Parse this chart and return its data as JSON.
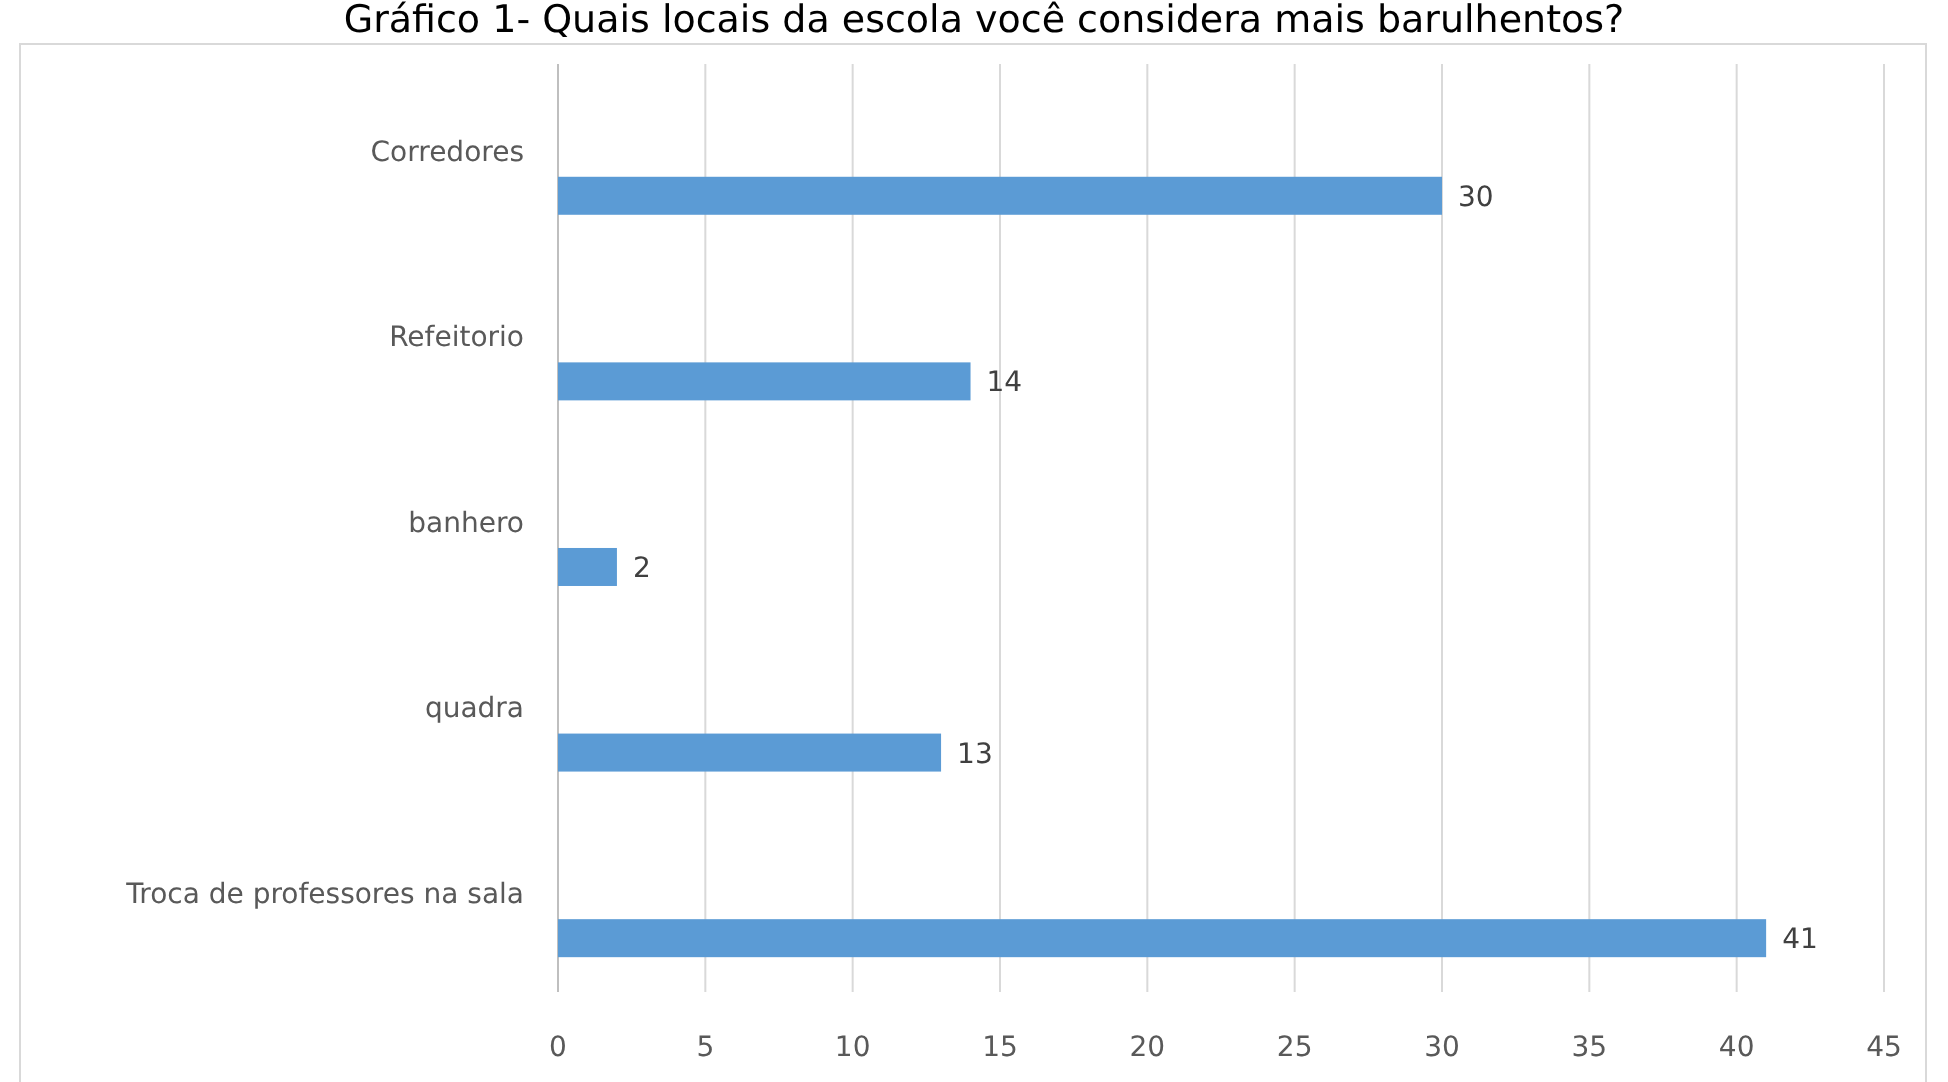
{
  "chart_data": {
    "type": "bar",
    "orientation": "horizontal",
    "title": "Gráfico 1- Quais locais da escola você considera mais barulhentos?",
    "categories": [
      "Corredores",
      "Refeitorio",
      "banhero",
      "quadra",
      "Troca de professores na sala"
    ],
    "values": [
      30,
      14,
      2,
      13,
      41
    ],
    "color": "#5b9bd5",
    "xlim": [
      0,
      45
    ],
    "xticks": [
      0,
      5,
      10,
      15,
      20,
      25,
      30,
      35,
      40,
      45
    ],
    "grid": "x",
    "data_labels": true
  }
}
